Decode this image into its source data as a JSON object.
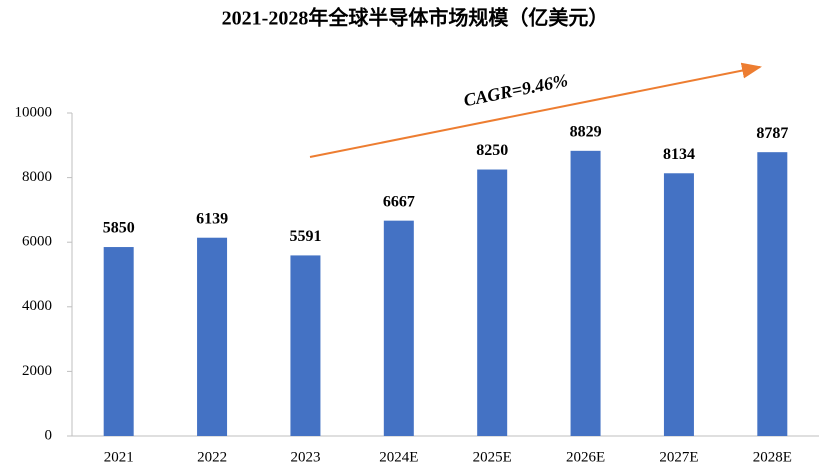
{
  "chart_data": {
    "type": "bar",
    "title": "2021-2028年全球半导体市场规模（亿美元）",
    "categories": [
      "2021",
      "2022",
      "2023",
      "2024E",
      "2025E",
      "2026E",
      "2027E",
      "2028E"
    ],
    "values": [
      5850,
      6139,
      5591,
      6667,
      8250,
      8829,
      8134,
      8787
    ],
    "color": "#4472c4",
    "ylim": [
      0,
      10000
    ],
    "yticks": [
      0,
      2000,
      4000,
      6000,
      8000,
      10000
    ],
    "annotation": "CAGR=9.46%"
  }
}
